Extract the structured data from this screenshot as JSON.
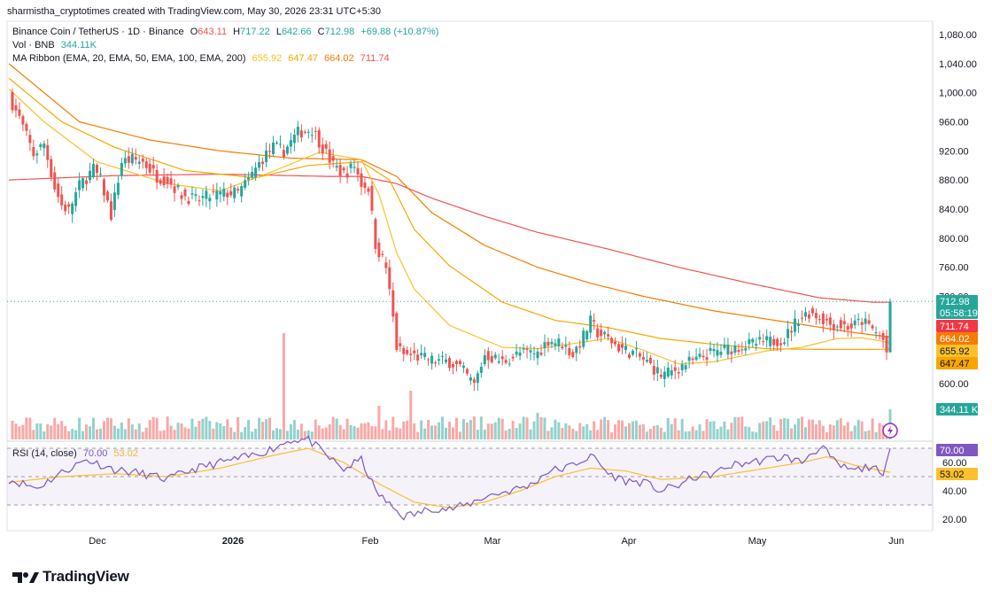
{
  "header": {
    "credit": "sharmistha_cryptotimes created with TradingView.com, May 30, 2026 23:31 UTC+5:30"
  },
  "legend": {
    "symbol": "Binance Coin / TetherUS · 1D · Binance",
    "open_label": "O",
    "open": "643.11",
    "high_label": "H",
    "high": "717.22",
    "low_label": "L",
    "low": "642.66",
    "close_label": "C",
    "close": "712.98",
    "change": "+69.88 (+10.87%)",
    "vol_label": "Vol · BNB",
    "vol_value": "344.11K",
    "ma_label": "MA Ribbon (EMA, 20, EMA, 50, EMA, 100, EMA, 200)",
    "ma_values": [
      "655.92",
      "647.47",
      "664.02",
      "711.74"
    ],
    "rsi_label": "RSI (14, close)",
    "rsi_value": "70.00",
    "rsi_ma_value": "53.02"
  },
  "colors": {
    "up": "#26a69a",
    "down": "#ef5350",
    "ema20": "#fbc02d",
    "ema50": "#f7a600",
    "ema100": "#f57c00",
    "ema200": "#ef5350",
    "rsi": "#7e57c2",
    "rsi_ma": "#fbc02d",
    "price_badge": "#26a69a"
  },
  "badges": {
    "price": "712.98",
    "countdown": "05:58:19",
    "ema200": "711.74",
    "ema100": "664.02",
    "ema20": "655.92",
    "ema50": "647.47",
    "volume": "344.11 K",
    "rsi": "70.00",
    "rsi_ma": "53.02"
  },
  "logo": {
    "text": "TradingView"
  },
  "chart_data": {
    "type": "candlestick",
    "title": "Binance Coin / TetherUS · 1D · Binance",
    "y_axis": {
      "ticks": [
        600,
        640,
        680,
        720,
        760,
        800,
        840,
        880,
        920,
        960,
        1000,
        1040,
        1080
      ],
      "tick_labels": [
        "600.00",
        "",
        "",
        "720.00",
        "760.00",
        "800.00",
        "840.00",
        "880.00",
        "920.00",
        "960.00",
        "1,000.00",
        "1,040.00",
        "1,080.00"
      ],
      "ylim": [
        590,
        1092
      ]
    },
    "rsi_axis": {
      "ticks": [
        20,
        40,
        60,
        70
      ],
      "tick_labels": [
        "20.00",
        "40.00",
        "60.00",
        "70.00"
      ],
      "bands": [
        30,
        70
      ]
    },
    "x_axis": {
      "labels": [
        "Dec",
        "2026",
        "Feb",
        "Mar",
        "Apr",
        "May",
        "Jun"
      ]
    },
    "series": [
      {
        "name": "Price",
        "anchors": [
          [
            0,
            995
          ],
          [
            3,
            965
          ],
          [
            7,
            915
          ],
          [
            10,
            930
          ],
          [
            13,
            870
          ],
          [
            15,
            845
          ],
          [
            17,
            838
          ],
          [
            20,
            872
          ],
          [
            24,
            895
          ],
          [
            26,
            880
          ],
          [
            29,
            832
          ],
          [
            32,
            905
          ],
          [
            35,
            908
          ],
          [
            38,
            905
          ],
          [
            42,
            885
          ],
          [
            45,
            880
          ],
          [
            49,
            860
          ],
          [
            53,
            852
          ],
          [
            57,
            858
          ],
          [
            62,
            862
          ],
          [
            65,
            862
          ],
          [
            68,
            880
          ],
          [
            72,
            910
          ],
          [
            75,
            925
          ],
          [
            78,
            920
          ],
          [
            82,
            945
          ],
          [
            86,
            950
          ],
          [
            89,
            925
          ],
          [
            92,
            900
          ],
          [
            95,
            888
          ],
          [
            98,
            900
          ],
          [
            100,
            875
          ],
          [
            102,
            870
          ],
          [
            104,
            792
          ],
          [
            107,
            760
          ],
          [
            109,
            690
          ],
          [
            110,
            650
          ],
          [
            112,
            640
          ],
          [
            115,
            638
          ],
          [
            120,
            632
          ],
          [
            125,
            630
          ],
          [
            128,
            622
          ],
          [
            132,
            598
          ],
          [
            135,
            640
          ],
          [
            140,
            630
          ],
          [
            145,
            642
          ],
          [
            150,
            642
          ],
          [
            153,
            660
          ],
          [
            157,
            655
          ],
          [
            160,
            640
          ],
          [
            163,
            665
          ],
          [
            165,
            685
          ],
          [
            167,
            670
          ],
          [
            170,
            662
          ],
          [
            173,
            650
          ],
          [
            178,
            640
          ],
          [
            182,
            625
          ],
          [
            185,
            612
          ],
          [
            188,
            616
          ],
          [
            192,
            628
          ],
          [
            195,
            632
          ],
          [
            198,
            640
          ],
          [
            202,
            646
          ],
          [
            208,
            652
          ],
          [
            212,
            655
          ],
          [
            216,
            658
          ],
          [
            220,
            662
          ],
          [
            224,
            690
          ],
          [
            227,
            698
          ],
          [
            230,
            692
          ],
          [
            233,
            682
          ],
          [
            236,
            680
          ],
          [
            239,
            678
          ],
          [
            242,
            686
          ],
          [
            245,
            675
          ],
          [
            248,
            660
          ],
          [
            249,
            643
          ],
          [
            250,
            712.98
          ]
        ]
      },
      {
        "name": "EMA 20",
        "anchors": [
          [
            0,
            1005
          ],
          [
            10,
            960
          ],
          [
            25,
            905
          ],
          [
            45,
            875
          ],
          [
            60,
            865
          ],
          [
            75,
            892
          ],
          [
            88,
            918
          ],
          [
            100,
            908
          ],
          [
            105,
            860
          ],
          [
            110,
            780
          ],
          [
            115,
            730
          ],
          [
            125,
            680
          ],
          [
            140,
            650
          ],
          [
            150,
            648
          ],
          [
            160,
            655
          ],
          [
            170,
            662
          ],
          [
            180,
            646
          ],
          [
            190,
            627
          ],
          [
            200,
            630
          ],
          [
            215,
            645
          ],
          [
            225,
            650
          ],
          [
            235,
            662
          ],
          [
            242,
            663
          ],
          [
            248,
            658
          ],
          [
            250,
            655.92
          ]
        ]
      },
      {
        "name": "EMA 50",
        "anchors": [
          [
            0,
            1020
          ],
          [
            15,
            960
          ],
          [
            30,
            925
          ],
          [
            50,
            893
          ],
          [
            70,
            883
          ],
          [
            85,
            900
          ],
          [
            100,
            905
          ],
          [
            108,
            880
          ],
          [
            115,
            812
          ],
          [
            125,
            762
          ],
          [
            140,
            712
          ],
          [
            155,
            687
          ],
          [
            170,
            677
          ],
          [
            185,
            662
          ],
          [
            200,
            654
          ],
          [
            215,
            648
          ],
          [
            230,
            647
          ],
          [
            245,
            647
          ],
          [
            250,
            647.47
          ]
        ]
      },
      {
        "name": "EMA 100",
        "anchors": [
          [
            0,
            1040
          ],
          [
            20,
            960
          ],
          [
            40,
            935
          ],
          [
            60,
            920
          ],
          [
            80,
            910
          ],
          [
            100,
            908
          ],
          [
            110,
            885
          ],
          [
            120,
            835
          ],
          [
            135,
            790
          ],
          [
            150,
            760
          ],
          [
            165,
            738
          ],
          [
            180,
            720
          ],
          [
            200,
            700
          ],
          [
            220,
            685
          ],
          [
            240,
            670
          ],
          [
            250,
            664.02
          ]
        ]
      },
      {
        "name": "EMA 200",
        "anchors": [
          [
            0,
            880
          ],
          [
            30,
            886
          ],
          [
            60,
            888
          ],
          [
            90,
            885
          ],
          [
            100,
            885
          ],
          [
            110,
            875
          ],
          [
            120,
            855
          ],
          [
            135,
            830
          ],
          [
            150,
            808
          ],
          [
            170,
            785
          ],
          [
            190,
            760
          ],
          [
            210,
            738
          ],
          [
            230,
            718
          ],
          [
            245,
            712
          ],
          [
            250,
            711.74
          ]
        ]
      },
      {
        "name": "RSI",
        "anchors": [
          [
            0,
            48
          ],
          [
            8,
            42
          ],
          [
            15,
            53
          ],
          [
            22,
            62
          ],
          [
            30,
            55
          ],
          [
            38,
            52
          ],
          [
            45,
            48
          ],
          [
            52,
            55
          ],
          [
            60,
            60
          ],
          [
            68,
            64
          ],
          [
            75,
            70
          ],
          [
            80,
            76
          ],
          [
            85,
            76
          ],
          [
            90,
            65
          ],
          [
            95,
            55
          ],
          [
            100,
            62
          ],
          [
            104,
            40
          ],
          [
            108,
            30
          ],
          [
            112,
            22
          ],
          [
            116,
            24
          ],
          [
            120,
            28
          ],
          [
            125,
            27
          ],
          [
            130,
            30
          ],
          [
            135,
            36
          ],
          [
            142,
            40
          ],
          [
            148,
            44
          ],
          [
            153,
            54
          ],
          [
            158,
            56
          ],
          [
            163,
            62
          ],
          [
            166,
            64
          ],
          [
            170,
            52
          ],
          [
            175,
            47
          ],
          [
            180,
            46
          ],
          [
            185,
            40
          ],
          [
            190,
            44
          ],
          [
            195,
            50
          ],
          [
            200,
            52
          ],
          [
            205,
            58
          ],
          [
            210,
            60
          ],
          [
            215,
            62
          ],
          [
            220,
            64
          ],
          [
            225,
            60
          ],
          [
            228,
            68
          ],
          [
            231,
            70
          ],
          [
            235,
            58
          ],
          [
            240,
            54
          ],
          [
            245,
            58
          ],
          [
            248,
            48
          ],
          [
            250,
            70
          ]
        ]
      },
      {
        "name": "RSI MA",
        "anchors": [
          [
            0,
            46
          ],
          [
            15,
            50
          ],
          [
            30,
            52
          ],
          [
            45,
            50
          ],
          [
            60,
            56
          ],
          [
            75,
            65
          ],
          [
            85,
            70
          ],
          [
            95,
            60
          ],
          [
            105,
            45
          ],
          [
            115,
            32
          ],
          [
            125,
            28
          ],
          [
            135,
            32
          ],
          [
            145,
            40
          ],
          [
            155,
            50
          ],
          [
            165,
            56
          ],
          [
            175,
            54
          ],
          [
            185,
            48
          ],
          [
            200,
            50
          ],
          [
            215,
            56
          ],
          [
            225,
            60
          ],
          [
            232,
            64
          ],
          [
            240,
            58
          ],
          [
            250,
            53.02
          ]
        ]
      }
    ]
  }
}
